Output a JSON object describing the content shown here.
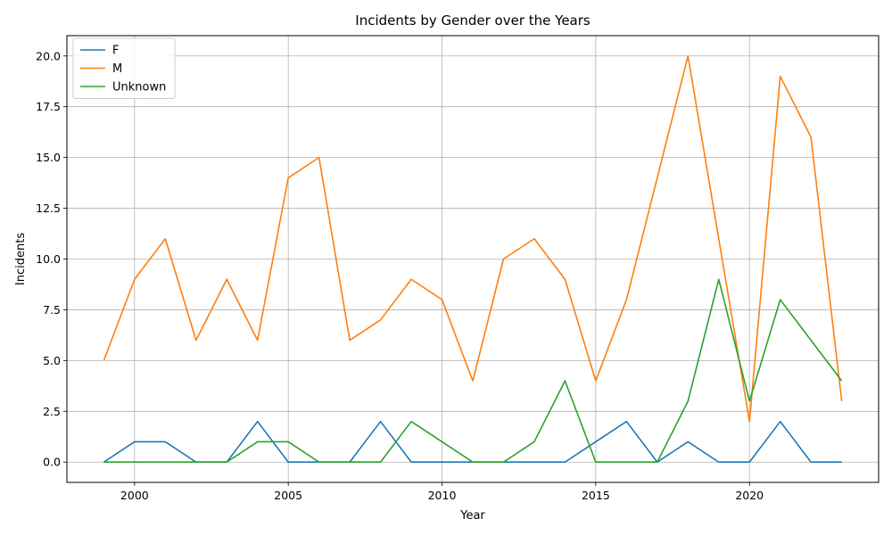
{
  "chart_data": {
    "type": "line",
    "title": "Incidents by Gender over the Years",
    "xlabel": "Year",
    "ylabel": "Incidents",
    "x": [
      1999,
      2000,
      2001,
      2002,
      2003,
      2004,
      2005,
      2006,
      2007,
      2008,
      2009,
      2010,
      2011,
      2012,
      2013,
      2014,
      2015,
      2016,
      2017,
      2018,
      2019,
      2020,
      2021,
      2022,
      2023
    ],
    "xlim": [
      1997.8,
      2024.2
    ],
    "ylim": [
      -1,
      21
    ],
    "xticks": [
      2000,
      2005,
      2010,
      2015,
      2020
    ],
    "xtick_labels": [
      "2000",
      "2005",
      "2010",
      "2015",
      "2020"
    ],
    "yticks": [
      0,
      2.5,
      5,
      7.5,
      10,
      12.5,
      15,
      17.5,
      20
    ],
    "ytick_labels": [
      "0.0",
      "2.5",
      "5.0",
      "7.5",
      "10.0",
      "12.5",
      "15.0",
      "17.5",
      "20.0"
    ],
    "grid": true,
    "legend_position": "top-left",
    "series": [
      {
        "name": "F",
        "color": "#1f77b4",
        "values": [
          0,
          1,
          1,
          0,
          0,
          2,
          0,
          0,
          0,
          2,
          0,
          0,
          0,
          0,
          0,
          0,
          1,
          2,
          0,
          1,
          0,
          0,
          2,
          0,
          0
        ]
      },
      {
        "name": "M",
        "color": "#ff7f0e",
        "values": [
          5,
          9,
          11,
          6,
          9,
          6,
          14,
          15,
          6,
          7,
          9,
          8,
          4,
          10,
          11,
          9,
          4,
          8,
          14,
          20,
          11,
          2,
          19,
          16,
          3
        ]
      },
      {
        "name": "Unknown",
        "color": "#2ca02c",
        "values": [
          0,
          0,
          0,
          0,
          0,
          1,
          1,
          0,
          0,
          0,
          2,
          1,
          0,
          0,
          1,
          4,
          0,
          0,
          0,
          3,
          9,
          3,
          8,
          6,
          4
        ]
      }
    ]
  }
}
